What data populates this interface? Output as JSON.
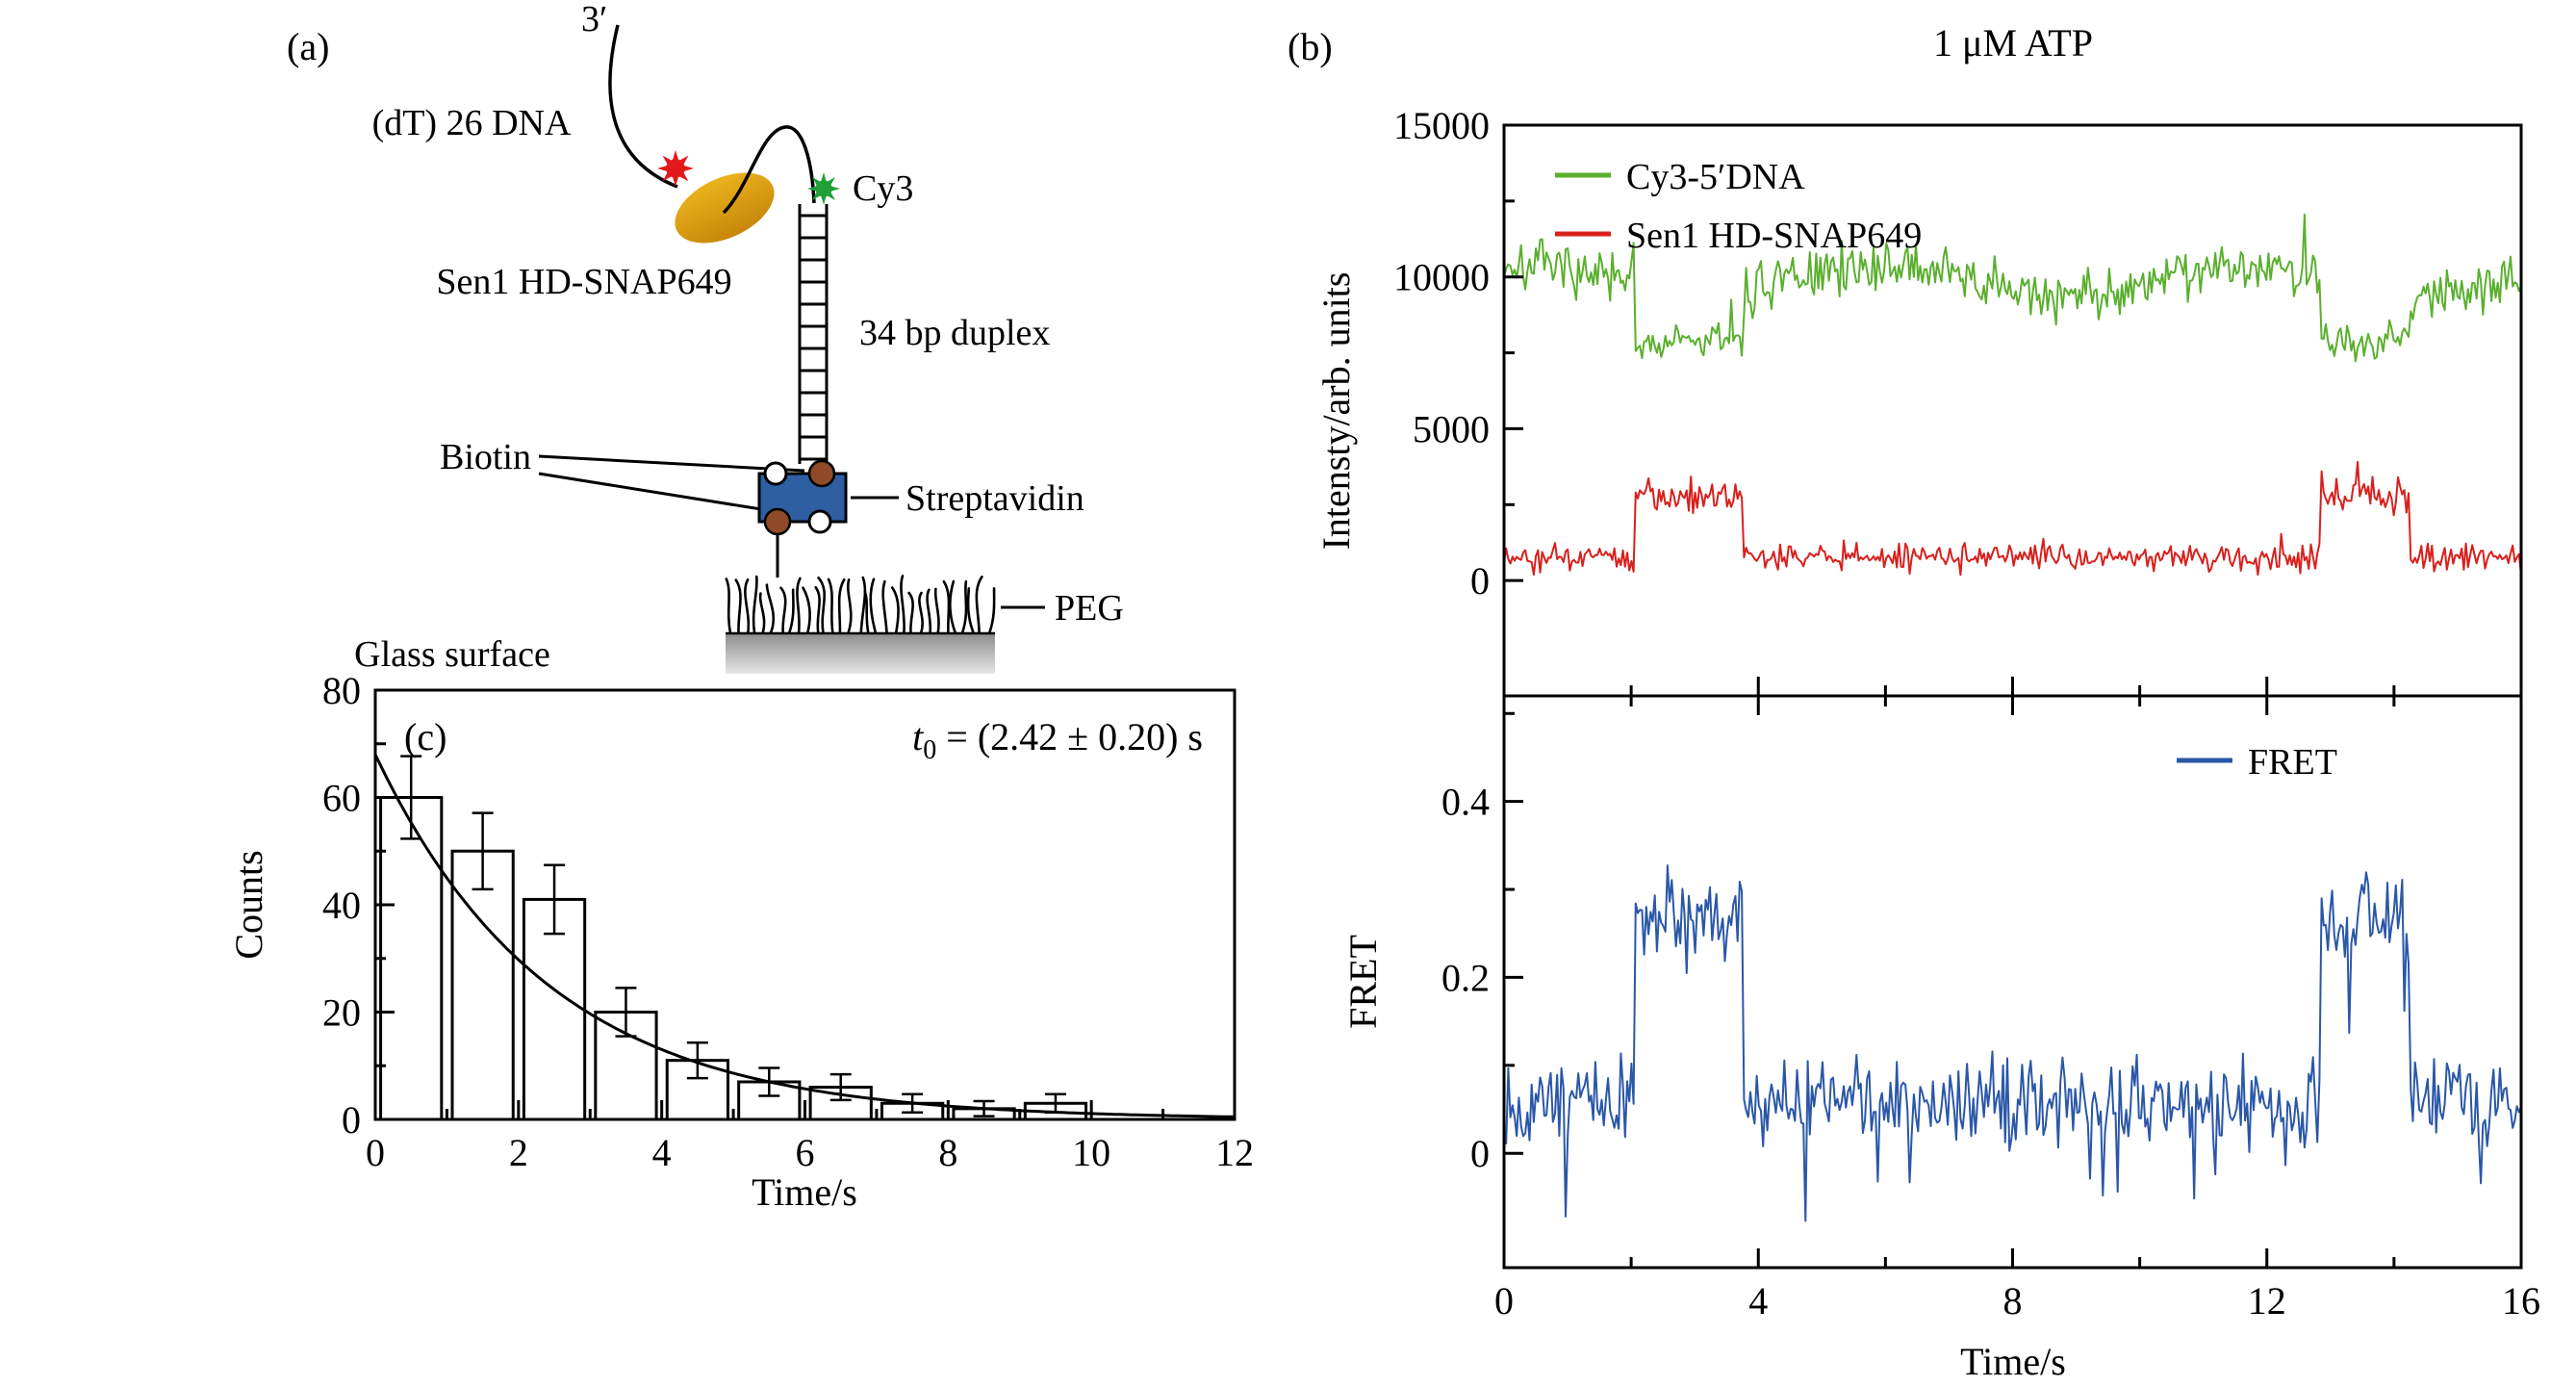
{
  "figure": {
    "panel_a": {
      "label": "(a)",
      "three_prime": "3′",
      "dna_label": "(dT) 26 DNA",
      "protein_label": "Sen1 HD-SNAP649",
      "cy3_label": "Cy3",
      "duplex_label": "34 bp duplex",
      "biotin_label": "Biotin",
      "streptavidin_label": "Streptavidin",
      "peg_label": "PEG",
      "glass_label": "Glass surface",
      "colors": {
        "protein_body_top": "#eab31c",
        "protein_body_bottom": "#c8860a",
        "red_dye": "#e3191c",
        "green_dye": "#21a038",
        "streptavidin_body": "#2e5fa3",
        "biotin_body": "#8f4b28",
        "glass_top": "#8c8c8c",
        "glass_bottom": "#e6e6e6"
      }
    },
    "panel_b": {
      "label": "(b)"
    },
    "panel_c": {
      "ann_t": "t",
      "ann_sub": "0",
      "ann_rest": " = (2.42 ± 0.20) s"
    }
  },
  "chart_data": [
    {
      "id": "b_top",
      "type": "line",
      "title": "1 μM ATP",
      "xlabel": "Time/s",
      "ylabel": "Intensty/arb. units",
      "xlim": [
        0,
        16
      ],
      "ylim": [
        -3800,
        15000
      ],
      "xticks": [
        0,
        4,
        8,
        12,
        16
      ],
      "xminor": [
        2,
        6,
        10,
        14
      ],
      "yticks": [
        0,
        5000,
        10000,
        15000
      ],
      "yminor": [
        2500,
        7500,
        12500
      ],
      "legend": [
        "Cy3-5′DNA",
        "Sen1 HD-SNAP649"
      ],
      "legend_colors": [
        "#5aaf2e",
        "#d8201d"
      ],
      "legend_position": "top-left-inside",
      "grid": false,
      "event_windows_s": [
        [
          2.05,
          3.75
        ],
        [
          12.85,
          14.25
        ]
      ],
      "points_per_trace": 480,
      "series": [
        {
          "name": "Cy3-5′DNA",
          "color": "#5aaf2e",
          "baseline_mean": 9900,
          "baseline_noise": 900,
          "event_mean": 7900,
          "event_noise": 650,
          "slow_wobble": {
            "amplitude": 500,
            "period_s": 5.6
          },
          "spike_chance": 0.015,
          "spike_amp": 2200,
          "spike_sign": 1,
          "noise_seed": 7
        },
        {
          "name": "Sen1 HD-SNAP649",
          "color": "#d8201d",
          "baseline_mean": 750,
          "baseline_noise": 450,
          "event_mean": 2800,
          "event_noise": 600,
          "spike_chance": 0.02,
          "spike_amp": 900,
          "spike_sign": 1,
          "noise_seed": 21
        }
      ]
    },
    {
      "id": "b_bottom",
      "type": "line",
      "xlabel": "Time/s",
      "ylabel": "FRET",
      "xlim": [
        0,
        16
      ],
      "ylim": [
        -0.13,
        0.52
      ],
      "xticks": [
        0,
        4,
        8,
        12,
        16
      ],
      "xminor": [
        2,
        6,
        10,
        14
      ],
      "yticks": [
        0,
        0.2,
        0.4
      ],
      "yminor": [
        0.1,
        0.3,
        0.5
      ],
      "legend": [
        "FRET"
      ],
      "legend_colors": [
        "#2a57a8"
      ],
      "legend_position": "top-right-inside",
      "grid": false,
      "event_windows_s": [
        [
          2.05,
          3.75
        ],
        [
          12.85,
          14.25
        ]
      ],
      "points_per_trace": 480,
      "series": [
        {
          "name": "FRET",
          "color": "#2a57a8",
          "baseline_mean": 0.06,
          "baseline_noise": 0.05,
          "event_mean": 0.27,
          "event_noise": 0.055,
          "spike_chance": 0.05,
          "spike_amp": 0.13,
          "spike_sign": -1,
          "noise_seed": 13
        }
      ]
    },
    {
      "id": "c_hist",
      "type": "bar",
      "panel_label": "(c)",
      "annotation": "t0 = (2.42 ± 0.20) s",
      "xlabel": "Time/s",
      "ylabel": "Counts",
      "xlim": [
        0,
        12
      ],
      "ylim": [
        0,
        80
      ],
      "xticks": [
        0,
        2,
        4,
        6,
        8,
        10,
        12
      ],
      "xminor": [
        1,
        3,
        5,
        7,
        9,
        11
      ],
      "yticks": [
        0,
        20,
        40,
        60,
        80
      ],
      "yminor": [
        10,
        30,
        50,
        70
      ],
      "grid": false,
      "bin_centers": [
        0.5,
        1.5,
        2.5,
        3.5,
        4.5,
        5.5,
        6.5,
        7.5,
        8.5,
        9.5
      ],
      "values": [
        60,
        50,
        41,
        20,
        11,
        7,
        6,
        3,
        2,
        3
      ],
      "errors": [
        7.7,
        7.1,
        6.4,
        4.5,
        3.3,
        2.6,
        2.4,
        1.7,
        1.4,
        1.7
      ],
      "bar_width": 0.85,
      "bar_fill": "#ffffff",
      "bar_stroke": "#000000",
      "fit": {
        "type": "exponential",
        "amplitude": 68,
        "t0": 2.42,
        "t0_err": 0.2,
        "unit": "s"
      }
    }
  ]
}
